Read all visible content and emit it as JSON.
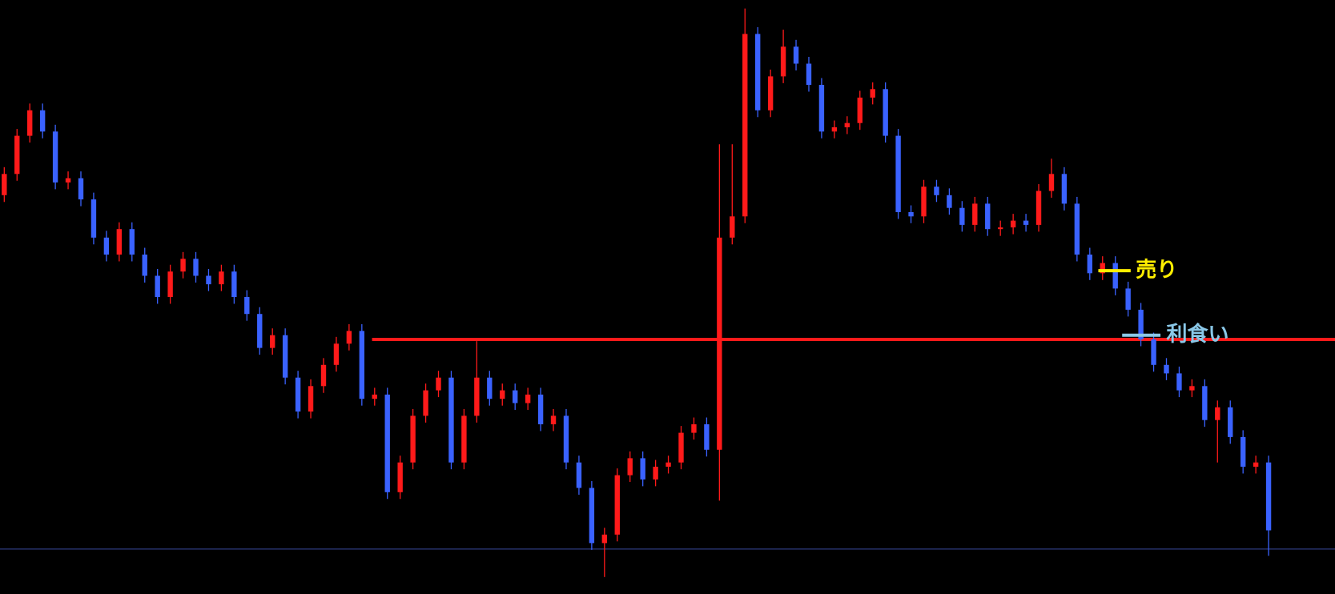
{
  "chart_data": {
    "type": "candlestick",
    "ylim": [
      0,
      700
    ],
    "up_color": "#ff1a1a",
    "down_color": "#3a62ff",
    "open": [
      470,
      495,
      540,
      570,
      545,
      485,
      490,
      465,
      420,
      400,
      430,
      400,
      375,
      350,
      380,
      395,
      375,
      365,
      380,
      350,
      330,
      290,
      305,
      255,
      215,
      245,
      270,
      295,
      310,
      230,
      235,
      120,
      155,
      210,
      240,
      255,
      155,
      210,
      255,
      230,
      240,
      225,
      235,
      200,
      210,
      155,
      125,
      60,
      70,
      140,
      160,
      135,
      150,
      155,
      190,
      200,
      170,
      420,
      445,
      660,
      570,
      610,
      645,
      625,
      600,
      545,
      550,
      555,
      585,
      595,
      540,
      450,
      445,
      480,
      470,
      455,
      435,
      460,
      430,
      432,
      440,
      435,
      475,
      495,
      460,
      400,
      378,
      390,
      360,
      335,
      300,
      270,
      260,
      240,
      245,
      205,
      220,
      185,
      150,
      155
    ],
    "high": [
      503,
      548,
      578,
      578,
      553,
      498,
      498,
      473,
      428,
      438,
      438,
      408,
      383,
      388,
      403,
      403,
      383,
      388,
      388,
      358,
      338,
      313,
      313,
      263,
      253,
      278,
      303,
      318,
      318,
      243,
      243,
      163,
      218,
      248,
      263,
      263,
      218,
      298,
      263,
      248,
      248,
      243,
      243,
      218,
      218,
      163,
      133,
      78,
      148,
      168,
      168,
      158,
      163,
      198,
      208,
      208,
      530,
      530,
      690,
      668,
      618,
      665,
      653,
      633,
      608,
      558,
      563,
      593,
      603,
      603,
      548,
      458,
      488,
      488,
      478,
      463,
      468,
      468,
      440,
      448,
      448,
      483,
      513,
      503,
      468,
      408,
      398,
      398,
      368,
      343,
      308,
      278,
      268,
      253,
      253,
      228,
      228,
      193,
      163,
      163
    ],
    "low": [
      462,
      487,
      532,
      537,
      477,
      477,
      457,
      412,
      392,
      392,
      392,
      367,
      342,
      342,
      372,
      367,
      357,
      357,
      342,
      322,
      282,
      282,
      247,
      207,
      207,
      237,
      262,
      287,
      222,
      222,
      112,
      112,
      147,
      202,
      232,
      147,
      147,
      202,
      222,
      222,
      217,
      217,
      192,
      192,
      147,
      117,
      52,
      20,
      62,
      132,
      127,
      127,
      142,
      147,
      182,
      162,
      110,
      412,
      437,
      562,
      562,
      602,
      617,
      592,
      537,
      537,
      542,
      547,
      577,
      532,
      442,
      437,
      437,
      462,
      447,
      427,
      427,
      422,
      422,
      424,
      427,
      427,
      467,
      452,
      392,
      370,
      370,
      352,
      327,
      292,
      262,
      252,
      232,
      232,
      197,
      155,
      177,
      142,
      142,
      45
    ],
    "close": [
      495,
      540,
      570,
      545,
      485,
      490,
      465,
      420,
      400,
      430,
      400,
      375,
      350,
      380,
      395,
      375,
      365,
      380,
      350,
      330,
      290,
      305,
      255,
      215,
      245,
      270,
      295,
      310,
      230,
      235,
      120,
      155,
      210,
      240,
      255,
      155,
      210,
      255,
      230,
      240,
      225,
      235,
      200,
      210,
      155,
      125,
      60,
      70,
      140,
      160,
      135,
      150,
      155,
      190,
      200,
      170,
      420,
      445,
      660,
      570,
      610,
      645,
      625,
      600,
      545,
      550,
      555,
      585,
      595,
      540,
      450,
      445,
      480,
      470,
      455,
      435,
      460,
      430,
      432,
      440,
      435,
      475,
      495,
      460,
      400,
      378,
      390,
      360,
      335,
      300,
      270,
      260,
      240,
      245,
      205,
      220,
      185,
      150,
      155,
      75
    ],
    "lines": [
      {
        "value": 300,
        "color": "#ff1a1a"
      },
      {
        "value": 53,
        "color": "#3a4aa0"
      }
    ],
    "annotations": [
      {
        "text": "売り",
        "value": 381,
        "color": "#ffee00"
      },
      {
        "text": "利食い",
        "value": 305,
        "color": "#8ac8e8"
      }
    ]
  }
}
